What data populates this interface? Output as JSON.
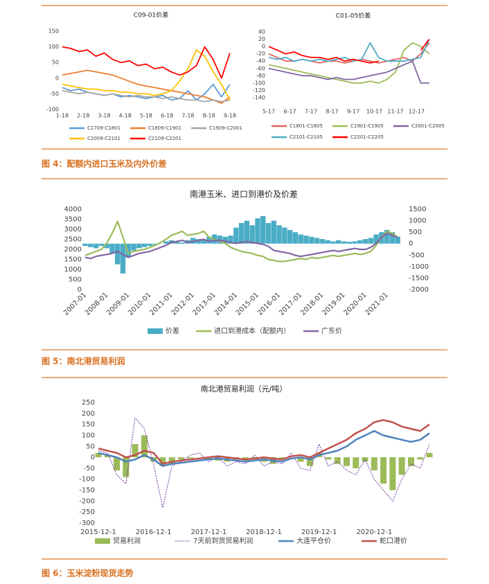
{
  "captions": [
    "图 4：配额内进口玉米及内外价差",
    "图 5：南北港贸易利润",
    "图 6：玉米淀粉现货走势"
  ],
  "chart_data": [
    {
      "type": "line",
      "title": "C09-01价差",
      "xlim": [
        0,
        8.4
      ],
      "xticks": [
        {
          "value": 0,
          "label": "1-18"
        },
        {
          "value": 1,
          "label": "2-18"
        },
        {
          "value": 2,
          "label": "3-18"
        },
        {
          "value": 3,
          "label": "4-18"
        },
        {
          "value": 4,
          "label": "5-18"
        },
        {
          "value": 5,
          "label": "6-18"
        },
        {
          "value": 6,
          "label": "7-18"
        },
        {
          "value": 7,
          "label": "8-18"
        },
        {
          "value": 8,
          "label": "9-18"
        }
      ],
      "ylim": [
        -100,
        150
      ],
      "yticks": [
        -100,
        -50,
        0,
        50,
        100,
        150
      ],
      "x": [
        0,
        0.4,
        0.8,
        1.2,
        1.6,
        2,
        2.4,
        2.8,
        3.2,
        3.6,
        4,
        4.4,
        4.8,
        5.2,
        5.6,
        6,
        6.4,
        6.8,
        7.2,
        7.6,
        8
      ],
      "series": [
        {
          "name": "C1709-C1801",
          "color": "#5b9bd5",
          "values": [
            -30,
            -40,
            -35,
            -45,
            -50,
            -55,
            -50,
            -60,
            -55,
            -60,
            -65,
            -60,
            -55,
            -70,
            -65,
            -40,
            -70,
            -50,
            -20,
            -60,
            -20
          ]
        },
        {
          "name": "C1809-C1901",
          "color": "#ed7d31",
          "values": [
            10,
            15,
            20,
            25,
            20,
            15,
            10,
            0,
            -10,
            -20,
            -25,
            -30,
            -35,
            -40,
            -45,
            -50,
            -55,
            -60,
            -70,
            -80,
            -60
          ]
        },
        {
          "name": "C1909-C2001",
          "color": "#a5a5a5",
          "values": [
            -40,
            -45,
            -50,
            -45,
            -50,
            -55,
            -50,
            -55,
            -60,
            -55,
            -60,
            -60,
            -65,
            -60,
            -65,
            -70,
            -70,
            -75,
            -70,
            -75,
            -70
          ]
        },
        {
          "name": "C2009-C2101",
          "color": "#ffc000",
          "values": [
            -20,
            -25,
            -30,
            -35,
            -35,
            -40,
            -40,
            -45,
            -45,
            -50,
            -50,
            -55,
            -50,
            -40,
            -10,
            30,
            90,
            70,
            20,
            -20,
            -70
          ]
        },
        {
          "name": "C2109-C2201",
          "color": "#ff0000",
          "values": [
            100,
            95,
            85,
            90,
            70,
            80,
            60,
            50,
            55,
            40,
            45,
            30,
            35,
            20,
            10,
            20,
            40,
            100,
            60,
            0,
            80
          ]
        }
      ]
    },
    {
      "type": "line",
      "title": "C01-05价差",
      "xlim": [
        0,
        8
      ],
      "xticks": [
        {
          "value": 0,
          "label": "5-17"
        },
        {
          "value": 1,
          "label": "6-17"
        },
        {
          "value": 2,
          "label": "7-17"
        },
        {
          "value": 3,
          "label": "8-17"
        },
        {
          "value": 4,
          "label": "9-17"
        },
        {
          "value": 5,
          "label": "10-17"
        },
        {
          "value": 6,
          "label": "11-17"
        },
        {
          "value": 7,
          "label": "12-17"
        }
      ],
      "ylim": [
        -140,
        40
      ],
      "yticks": [
        -140,
        -120,
        -100,
        -80,
        -60,
        -40,
        -20,
        0,
        20,
        40
      ],
      "x": [
        0,
        0.4,
        0.8,
        1.2,
        1.6,
        2,
        2.4,
        2.8,
        3.2,
        3.6,
        4,
        4.4,
        4.8,
        5.2,
        5.6,
        6,
        6.4,
        6.8,
        7.2,
        7.6
      ],
      "series": [
        {
          "name": "C1801-C1805",
          "color": "#e0605e",
          "values": [
            -20,
            -30,
            -40,
            -40,
            -35,
            -40,
            -45,
            -40,
            -40,
            -45,
            -40,
            -35,
            -40,
            -45,
            -40,
            -35,
            -30,
            -40,
            -20,
            10
          ]
        },
        {
          "name": "C1901-C1905",
          "color": "#9bbb59",
          "values": [
            -50,
            -55,
            -60,
            -65,
            -70,
            -75,
            -80,
            -85,
            -90,
            -95,
            -100,
            -100,
            -95,
            -100,
            -90,
            -70,
            -10,
            10,
            0,
            -20
          ]
        },
        {
          "name": "C2001-C2005",
          "color": "#8064a2",
          "values": [
            -60,
            -65,
            -70,
            -75,
            -80,
            -80,
            -85,
            -90,
            -85,
            -90,
            -90,
            -85,
            -80,
            -75,
            -70,
            -60,
            -50,
            -40,
            -100,
            -100
          ]
        },
        {
          "name": "C2101-C2105",
          "color": "#4bacc6",
          "values": [
            -30,
            -35,
            -30,
            -40,
            -35,
            -40,
            -35,
            -40,
            -35,
            -30,
            -40,
            -35,
            10,
            -30,
            -40,
            -40,
            -40,
            -35,
            -30,
            20
          ]
        },
        {
          "name": "C2201-C2205",
          "color": "#ff0000",
          "values": [
            0,
            -10,
            -20,
            -15,
            -25,
            -30,
            -30,
            -35,
            -30,
            -40,
            -35,
            -40,
            -45,
            -40,
            null,
            null,
            null,
            null,
            -10,
            20
          ]
        }
      ]
    },
    {
      "type": "combo",
      "title": "南港玉米、进口到港价及价差",
      "xlim": [
        2007,
        2021.75
      ],
      "xticks": [
        {
          "value": 2007,
          "label": "2007-01"
        },
        {
          "value": 2008,
          "label": "2008-01"
        },
        {
          "value": 2009,
          "label": "2009-01"
        },
        {
          "value": 2010,
          "label": "2010-01"
        },
        {
          "value": 2011,
          "label": "2011-01"
        },
        {
          "value": 2012,
          "label": "2012-01"
        },
        {
          "value": 2013,
          "label": "2013-01"
        },
        {
          "value": 2014,
          "label": "2014-01"
        },
        {
          "value": 2015,
          "label": "2015-01"
        },
        {
          "value": 2016,
          "label": "2016-01"
        },
        {
          "value": 2017,
          "label": "2017-01"
        },
        {
          "value": 2018,
          "label": "2018-01"
        },
        {
          "value": 2019,
          "label": "2019-01"
        },
        {
          "value": 2020,
          "label": "2020-01"
        },
        {
          "value": 2021,
          "label": "2021-01"
        }
      ],
      "ylim": [
        0,
        4000
      ],
      "yticks": [
        0,
        500,
        1000,
        1500,
        2000,
        2500,
        3000,
        3500,
        4000
      ],
      "y2lim": [
        -2000,
        1500
      ],
      "y2ticks": [
        -2000,
        -1500,
        -1000,
        -500,
        0,
        500,
        1000,
        1500
      ],
      "x": [
        2007,
        2007.25,
        2007.5,
        2007.75,
        2008,
        2008.25,
        2008.5,
        2008.75,
        2009,
        2009.25,
        2009.5,
        2009.75,
        2010,
        2010.25,
        2010.5,
        2010.75,
        2011,
        2011.25,
        2011.5,
        2011.75,
        2012,
        2012.25,
        2012.5,
        2012.75,
        2013,
        2013.25,
        2013.5,
        2013.75,
        2014,
        2014.25,
        2014.5,
        2014.75,
        2015,
        2015.25,
        2015.5,
        2015.75,
        2016,
        2016.25,
        2016.5,
        2016.75,
        2017,
        2017.25,
        2017.5,
        2017.75,
        2018,
        2018.25,
        2018.5,
        2018.75,
        2019,
        2019.25,
        2019.5,
        2019.75,
        2020,
        2020.25,
        2020.5,
        2020.75,
        2021,
        2021.25,
        2021.5
      ],
      "series": [
        {
          "name": "价差",
          "color": "#4bacc6",
          "kind": "bar",
          "axis": "y2",
          "values": [
            -100,
            -150,
            -200,
            -100,
            -200,
            -400,
            -900,
            -1300,
            -600,
            -300,
            -200,
            -150,
            -100,
            -50,
            0,
            100,
            150,
            100,
            50,
            150,
            250,
            200,
            150,
            300,
            400,
            350,
            300,
            350,
            700,
            900,
            1000,
            800,
            1100,
            1200,
            900,
            1000,
            800,
            700,
            600,
            500,
            400,
            350,
            300,
            250,
            200,
            150,
            100,
            150,
            100,
            80,
            100,
            150,
            200,
            250,
            400,
            500,
            600,
            500,
            300
          ]
        },
        {
          "name": "进口到港成本（配额内）",
          "color": "#9bbb59",
          "kind": "line",
          "values": [
            1700,
            1800,
            1900,
            2000,
            2300,
            2800,
            3400,
            2600,
            1800,
            1900,
            1950,
            2000,
            2100,
            2200,
            2350,
            2500,
            2700,
            2800,
            2900,
            2700,
            2750,
            2800,
            2900,
            2600,
            2500,
            2400,
            2300,
            2100,
            2000,
            1900,
            1850,
            1800,
            1700,
            1650,
            1500,
            1450,
            1400,
            1400,
            1450,
            1500,
            1550,
            1500,
            1600,
            1550,
            1600,
            1650,
            1700,
            1650,
            1700,
            1750,
            1800,
            1750,
            1800,
            1900,
            2200,
            2600,
            2900,
            2800,
            2600
          ]
        },
        {
          "name": "广东价",
          "color": "#8064a2",
          "kind": "line",
          "values": [
            1600,
            1550,
            1650,
            1700,
            1750,
            1800,
            1900,
            1750,
            1600,
            1700,
            1800,
            1850,
            1900,
            2000,
            2100,
            2200,
            2350,
            2400,
            2450,
            2350,
            2400,
            2450,
            2500,
            2400,
            2450,
            2450,
            2400,
            2350,
            2300,
            2350,
            2400,
            2350,
            2300,
            2250,
            2150,
            1950,
            1900,
            1850,
            1800,
            1700,
            1650,
            1700,
            1750,
            1800,
            1850,
            1900,
            1950,
            1900,
            1950,
            2000,
            2050,
            2000,
            2000,
            2100,
            2300,
            2600,
            2800,
            2700,
            2600
          ]
        }
      ]
    },
    {
      "type": "combo",
      "title": "南北港贸易利润（元/吨）",
      "xlim": [
        0,
        72
      ],
      "xticks": [
        {
          "value": 0,
          "label": "2015-12-1"
        },
        {
          "value": 12,
          "label": "2016-12-1"
        },
        {
          "value": 24,
          "label": "2017-12-1"
        },
        {
          "value": 36,
          "label": "2018-12-1"
        },
        {
          "value": 48,
          "label": "2019-12-1"
        },
        {
          "value": 60,
          "label": "2020-12-1"
        }
      ],
      "ylim": [
        -300,
        250
      ],
      "yticks": [
        -300,
        -250,
        -200,
        -150,
        -100,
        -50,
        0,
        50,
        100,
        150,
        200,
        250
      ],
      "x": [
        0,
        2,
        4,
        6,
        8,
        10,
        12,
        14,
        16,
        18,
        20,
        22,
        24,
        26,
        28,
        30,
        32,
        34,
        36,
        38,
        40,
        42,
        44,
        46,
        48,
        50,
        52,
        54,
        56,
        58,
        60,
        62,
        64,
        66,
        68,
        70,
        72
      ],
      "series": [
        {
          "name": "贸易利润",
          "color": "#9bbb59",
          "kind": "bar",
          "values": [
            20,
            10,
            -60,
            -90,
            60,
            100,
            -20,
            -40,
            -30,
            -10,
            -5,
            0,
            -10,
            -15,
            -20,
            -10,
            -15,
            -10,
            -20,
            -30,
            -10,
            0,
            -20,
            -40,
            20,
            -10,
            -30,
            -40,
            -50,
            -20,
            -60,
            -120,
            -150,
            -80,
            -40,
            -10,
            20
          ]
        },
        {
          "name": "7天前到货贸易利润",
          "color": "#7030a0",
          "kind": "line",
          "dash": true,
          "values": [
            30,
            20,
            -80,
            -120,
            180,
            130,
            -30,
            -230,
            -40,
            -20,
            10,
            20,
            -20,
            0,
            -40,
            -20,
            -30,
            10,
            -40,
            -20,
            -30,
            20,
            -50,
            -60,
            60,
            -40,
            -20,
            -60,
            -80,
            -10,
            -100,
            -150,
            -200,
            -100,
            -30,
            -50,
            60
          ]
        },
        {
          "name": "大连平仓价",
          "color": "#4f81bd",
          "kind": "line",
          "width": 2.5,
          "values": [
            20,
            10,
            0,
            -20,
            -10,
            10,
            -10,
            -40,
            -30,
            -25,
            -20,
            -15,
            -10,
            -5,
            -10,
            -15,
            -20,
            -15,
            -10,
            -15,
            -20,
            -5,
            0,
            -10,
            10,
            20,
            30,
            50,
            80,
            100,
            120,
            100,
            90,
            80,
            70,
            80,
            110
          ]
        },
        {
          "name": "蛇口港价",
          "color": "#c0504d",
          "kind": "line",
          "width": 2.5,
          "values": [
            40,
            30,
            20,
            0,
            10,
            30,
            20,
            -30,
            -20,
            -15,
            -10,
            -5,
            0,
            5,
            0,
            -5,
            -10,
            -5,
            0,
            -5,
            -10,
            5,
            10,
            0,
            20,
            40,
            60,
            80,
            110,
            130,
            160,
            170,
            160,
            140,
            130,
            120,
            150
          ]
        }
      ]
    }
  ]
}
